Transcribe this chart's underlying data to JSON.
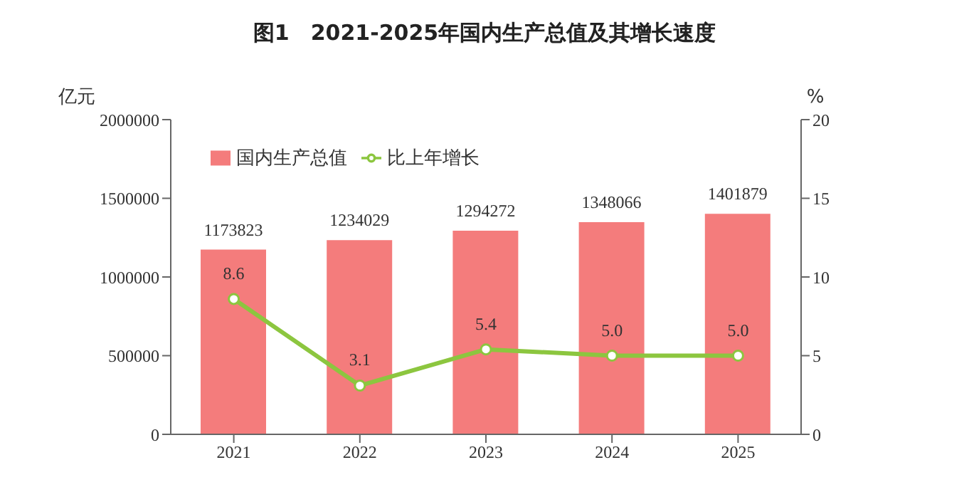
{
  "chart_data": {
    "type": "bar",
    "title": "图1　2021-2025年国内生产总值及其增长速度",
    "ylabel": "亿元",
    "y2label": "%",
    "categories": [
      "2021",
      "2022",
      "2023",
      "2024",
      "2025"
    ],
    "series": [
      {
        "name": "国内生产总值",
        "color": "#f47c7c",
        "values": [
          1173823,
          1234029,
          1294272,
          1348066,
          1401879
        ]
      },
      {
        "name": "比上年增长",
        "type": "line",
        "axis": "y2",
        "color": "#8cc63f",
        "values": [
          8.6,
          3.1,
          5.4,
          5.0,
          5.0
        ],
        "value_labels": [
          "8.6",
          "3.1",
          "5.4",
          "5.0",
          "5.0"
        ]
      }
    ],
    "ylim": [
      0,
      2000000
    ],
    "yticks": [
      0,
      500000,
      1000000,
      1500000,
      2000000
    ],
    "y2lim": [
      0,
      20
    ],
    "y2ticks": [
      0,
      5,
      10,
      15,
      20
    ],
    "data_labels": true,
    "legend": "top left",
    "marker": "circle",
    "grid": false
  }
}
